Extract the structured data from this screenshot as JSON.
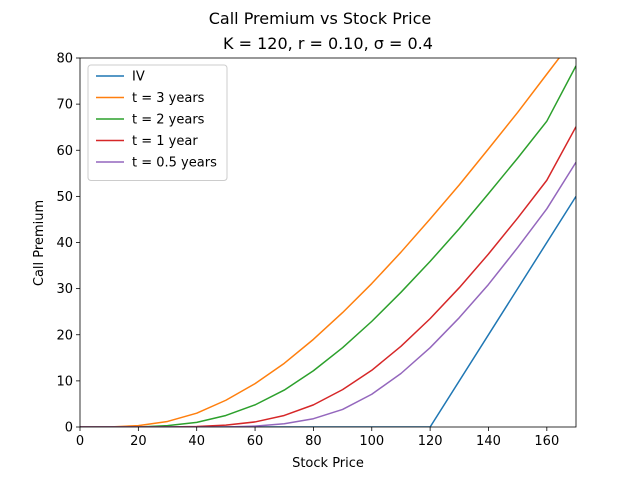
{
  "chart_data": {
    "type": "line",
    "title": "Call Premium vs Stock Price",
    "subtitle": "K = 120, r = 0.10, σ = 0.4",
    "xlabel": "Stock Price",
    "ylabel": "Call Premium",
    "xlim": [
      0,
      170
    ],
    "ylim": [
      0,
      80
    ],
    "xticks": [
      0,
      20,
      40,
      60,
      80,
      100,
      120,
      140,
      160
    ],
    "yticks": [
      0,
      10,
      20,
      30,
      40,
      50,
      60,
      70,
      80
    ],
    "grid": false,
    "legend_position": "top-left",
    "x": [
      0,
      10,
      20,
      30,
      40,
      50,
      60,
      70,
      80,
      90,
      100,
      110,
      120,
      130,
      140,
      150,
      160,
      170
    ],
    "series": [
      {
        "name": "IV",
        "color": "#1f77b4",
        "points": [
          [
            0,
            0
          ],
          [
            120,
            0
          ],
          [
            170,
            50
          ]
        ]
      },
      {
        "name": "t = 3 years",
        "color": "#ff7f0e",
        "values": [
          0,
          0.0,
          0.3,
          1.2,
          3.0,
          5.8,
          9.4,
          13.8,
          19.0,
          24.8,
          31.1,
          37.9,
          45.1,
          52.5,
          60.3,
          68.2,
          76.5,
          84.8
        ]
      },
      {
        "name": "t = 2 years",
        "color": "#2ca02c",
        "values": [
          0,
          0.0,
          0.0,
          0.3,
          1.0,
          2.5,
          4.8,
          8.0,
          12.2,
          17.2,
          22.9,
          29.2,
          35.9,
          43.0,
          50.6,
          58.3,
          66.3,
          78.3
        ]
      },
      {
        "name": "t = 1 year",
        "color": "#d62728",
        "values": [
          0,
          0.0,
          0.0,
          0.0,
          0.1,
          0.4,
          1.1,
          2.5,
          4.8,
          8.1,
          12.3,
          17.5,
          23.5,
          30.2,
          37.5,
          45.3,
          53.5,
          65.1
        ]
      },
      {
        "name": "t = 0.5 years",
        "color": "#9467bd",
        "values": [
          0,
          0.0,
          0.0,
          0.0,
          0.0,
          0.0,
          0.2,
          0.7,
          1.8,
          3.8,
          7.1,
          11.6,
          17.2,
          23.7,
          30.9,
          38.9,
          47.3,
          57.4
        ]
      }
    ]
  }
}
